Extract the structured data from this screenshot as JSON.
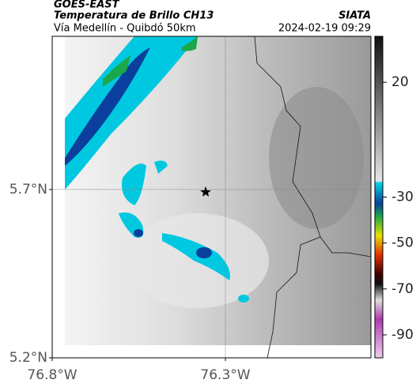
{
  "header": {
    "source": "GOES-EAST",
    "title": "Temperatura de Brillo CH13",
    "org": "SIATA",
    "subtitle": "Vía Medellín - Quibdó 50km",
    "timestamp": "2024-02-19 09:29"
  },
  "map": {
    "xlim": [
      -76.8,
      -75.88
    ],
    "ylim": [
      5.2,
      6.155
    ],
    "xticks": [
      {
        "value": -76.8,
        "label": "76.8°W"
      },
      {
        "value": -76.3,
        "label": "76.3°W"
      }
    ],
    "yticks": [
      {
        "value": 5.7,
        "label": "5.7°N"
      },
      {
        "value": 5.2,
        "label": "5.2°N"
      }
    ]
  },
  "colorbar": {
    "lim": [
      40,
      -100
    ],
    "ticks": [
      20,
      -30,
      -50,
      -70,
      -90
    ]
  }
}
